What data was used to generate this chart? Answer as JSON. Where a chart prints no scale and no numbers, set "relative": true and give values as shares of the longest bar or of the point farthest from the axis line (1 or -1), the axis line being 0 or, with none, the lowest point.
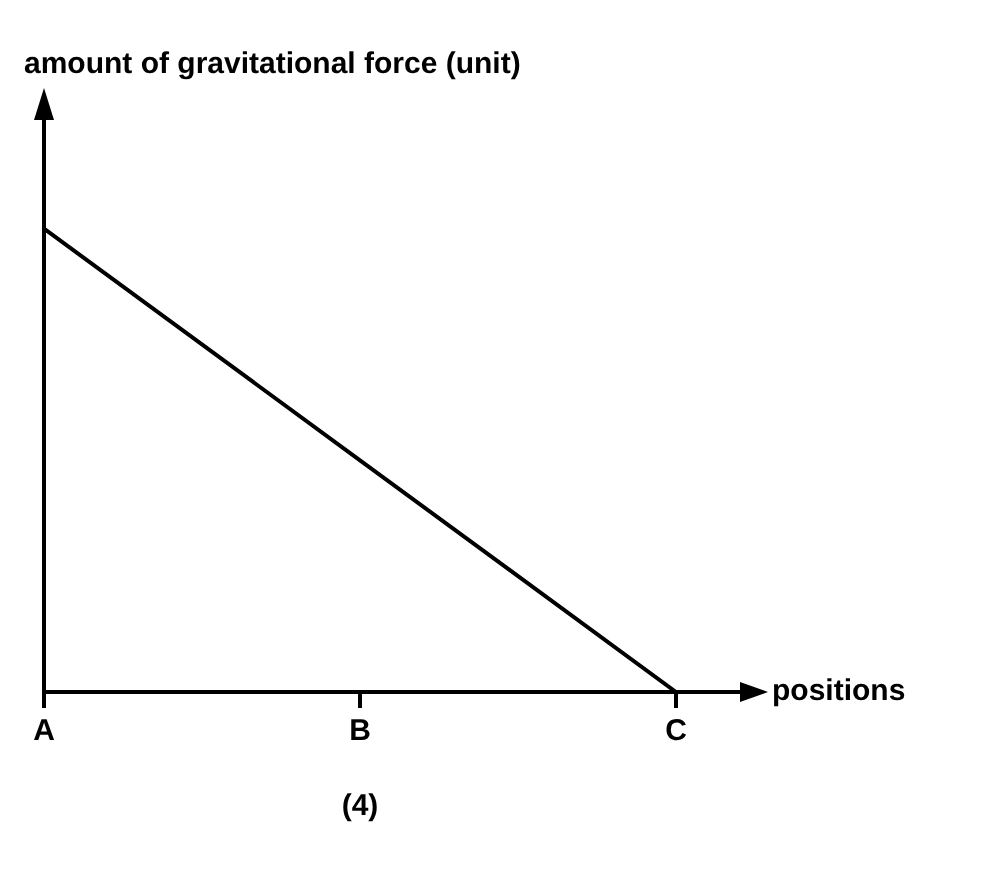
{
  "chart_data": {
    "type": "line",
    "relative": true,
    "categories": [
      "A",
      "B",
      "C"
    ],
    "series": [
      {
        "color": "#000000",
        "values": [
          1,
          0.5,
          0
        ]
      }
    ],
    "xlabel": "positions",
    "ylabel": "amount of gravitational force (unit)",
    "annotations": [
      "(4)"
    ],
    "grid": false,
    "legend": false,
    "marker": "none",
    "line_style": "solid"
  }
}
